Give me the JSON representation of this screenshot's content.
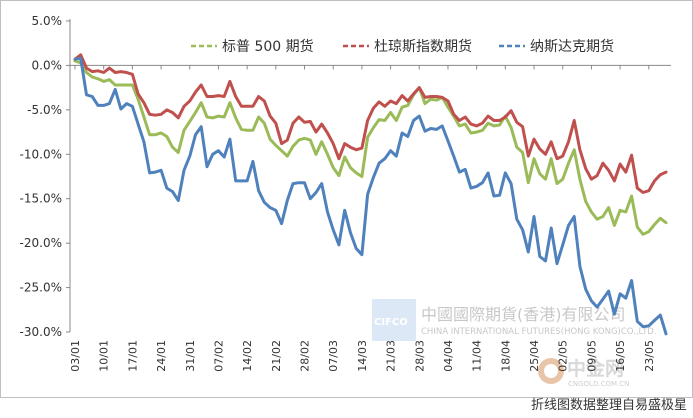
{
  "chart_data": {
    "type": "line",
    "title": "",
    "xlabel": "",
    "ylabel": "",
    "ylim": [
      -30,
      5
    ],
    "yticks": [
      5,
      0,
      -5,
      -10,
      -15,
      -20,
      -25,
      -30
    ],
    "ytick_labels": [
      "5.0%",
      "0.0%",
      "-5.0%",
      "-10.0%",
      "-15.0%",
      "-20.0%",
      "-25.0%",
      "-30.0%"
    ],
    "x_labels": [
      "03/01",
      "10/01",
      "17/01",
      "24/01",
      "31/01",
      "07/02",
      "14/02",
      "21/02",
      "28/02",
      "07/03",
      "14/03",
      "21/03",
      "28/03",
      "04/04",
      "11/04",
      "18/04",
      "25/04",
      "02/05",
      "09/05",
      "16/05",
      "23/05"
    ],
    "x_label_index": [
      0,
      5,
      10,
      15,
      20,
      25,
      30,
      35,
      40,
      45,
      50,
      55,
      60,
      65,
      70,
      75,
      80,
      85,
      90,
      95,
      100
    ],
    "legend_position": "top-right",
    "grid": false,
    "series": [
      {
        "name": "标普 500 期货",
        "color": "#9bbb59",
        "values": [
          0.5,
          0.3,
          -0.8,
          -1.3,
          -1.5,
          -1.8,
          -1.6,
          -2.2,
          -2.2,
          -2.2,
          -2.2,
          -3.8,
          -5.8,
          -7.8,
          -7.8,
          -7.6,
          -8.0,
          -9.2,
          -9.8,
          -7.3,
          -6.3,
          -5.3,
          -4.2,
          -5.8,
          -5.9,
          -5.7,
          -5.8,
          -4.2,
          -5.9,
          -7.2,
          -7.3,
          -7.3,
          -5.8,
          -6.5,
          -8.3,
          -9.0,
          -9.6,
          -10.2,
          -9.1,
          -8.4,
          -8.2,
          -8.4,
          -10.0,
          -8.6,
          -10.0,
          -11.5,
          -12.4,
          -10.3,
          -11.5,
          -12.1,
          -12.5,
          -8.1,
          -7.0,
          -6.1,
          -6.2,
          -5.3,
          -6.2,
          -4.7,
          -4.5,
          -3.3,
          -2.5,
          -4.3,
          -3.8,
          -3.9,
          -3.6,
          -4.7,
          -5.7,
          -6.8,
          -6.6,
          -7.6,
          -7.5,
          -7.3,
          -6.5,
          -6.8,
          -6.7,
          -5.7,
          -7.0,
          -9.2,
          -9.8,
          -13.2,
          -10.5,
          -12.2,
          -12.8,
          -10.5,
          -13.3,
          -12.8,
          -11.0,
          -9.5,
          -12.8,
          -15.3,
          -16.5,
          -17.3,
          -17.0,
          -16.0,
          -18.0,
          -16.3,
          -16.5,
          -14.7,
          -18.2,
          -19.0,
          -18.7,
          -17.9,
          -17.2,
          -17.7
        ]
      },
      {
        "name": "杜琼斯指数期货",
        "color": "#c0504d",
        "values": [
          0.7,
          1.2,
          -0.3,
          -0.7,
          -0.6,
          -0.8,
          -0.3,
          -0.8,
          -0.7,
          -0.8,
          -1.0,
          -3.2,
          -4.2,
          -5.5,
          -5.6,
          -5.5,
          -5.0,
          -5.3,
          -5.9,
          -4.6,
          -4.0,
          -3.0,
          -2.2,
          -3.5,
          -3.5,
          -3.4,
          -3.5,
          -1.8,
          -3.5,
          -4.6,
          -4.6,
          -4.6,
          -3.5,
          -4.0,
          -5.7,
          -6.5,
          -8.8,
          -8.4,
          -6.5,
          -5.8,
          -6.4,
          -6.3,
          -7.5,
          -6.6,
          -7.6,
          -8.8,
          -10.5,
          -8.8,
          -9.2,
          -9.5,
          -9.3,
          -6.2,
          -4.8,
          -4.1,
          -4.6,
          -4.0,
          -4.3,
          -3.4,
          -4.0,
          -3.2,
          -2.5,
          -3.6,
          -3.5,
          -3.5,
          -3.6,
          -4.0,
          -5.5,
          -6.2,
          -5.8,
          -6.6,
          -6.8,
          -6.5,
          -5.7,
          -6.2,
          -6.2,
          -5.8,
          -5.1,
          -6.4,
          -6.9,
          -10.2,
          -8.3,
          -9.4,
          -10.0,
          -8.6,
          -10.5,
          -10.2,
          -8.6,
          -6.2,
          -9.5,
          -11.6,
          -12.8,
          -12.4,
          -11.0,
          -11.8,
          -13.0,
          -11.1,
          -12.0,
          -10.1,
          -13.8,
          -14.3,
          -14.1,
          -13.0,
          -12.3,
          -12.0
        ]
      },
      {
        "name": "纳斯达克期货",
        "color": "#4f81bd",
        "values": [
          0.7,
          0.8,
          -3.3,
          -3.5,
          -4.5,
          -4.5,
          -4.3,
          -2.7,
          -4.9,
          -4.3,
          -4.6,
          -6.6,
          -8.6,
          -12.1,
          -12.0,
          -11.8,
          -13.8,
          -14.2,
          -15.2,
          -11.8,
          -10.2,
          -7.8,
          -6.9,
          -11.4,
          -10.0,
          -9.6,
          -10.3,
          -8.3,
          -13.0,
          -13.0,
          -13.0,
          -10.8,
          -14.1,
          -15.4,
          -16.0,
          -16.3,
          -17.8,
          -15.2,
          -13.3,
          -13.2,
          -13.2,
          -15.0,
          -14.3,
          -13.3,
          -16.5,
          -18.5,
          -20.2,
          -16.3,
          -18.8,
          -20.6,
          -21.3,
          -14.5,
          -12.6,
          -11.0,
          -10.5,
          -9.6,
          -10.2,
          -7.6,
          -8.0,
          -6.2,
          -5.7,
          -7.4,
          -7.1,
          -7.2,
          -6.8,
          -8.5,
          -10.2,
          -12.0,
          -11.7,
          -13.8,
          -13.6,
          -13.2,
          -12.1,
          -14.7,
          -14.6,
          -12.1,
          -13.3,
          -17.3,
          -18.5,
          -21.0,
          -17.0,
          -21.5,
          -22.0,
          -18.3,
          -22.3,
          -20.2,
          -18.0,
          -17.0,
          -22.6,
          -25.2,
          -26.5,
          -27.2,
          -26.3,
          -25.4,
          -28.0,
          -25.7,
          -26.2,
          -24.2,
          -28.8,
          -29.4,
          -29.3,
          -28.7,
          -28.1,
          -30.2
        ]
      }
    ]
  },
  "watermark": {
    "cn": "中國國際期貨(香港)有限公司",
    "en": "CHINA INTERNATIONAL FUTURES(HONG KONG)CO.,LTD.",
    "badge": "CIFCO"
  },
  "logo": {
    "cn": "中金网",
    "en": "CNGOLD.COM.CN"
  },
  "caption": "折线图数据整理自易盛极星"
}
